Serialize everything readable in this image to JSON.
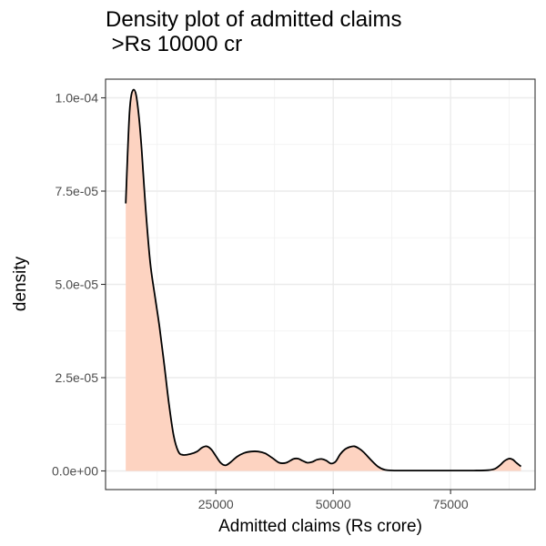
{
  "chart_data": {
    "type": "area",
    "title_line1": "Density plot of admitted claims",
    "title_line2": " >Rs 10000 cr",
    "xlabel": "Admitted claims (Rs crore)",
    "ylabel": "density",
    "xlim": [
      1500,
      93000
    ],
    "ylim": [
      -5e-06,
      0.000105
    ],
    "x_ticks": [
      {
        "value": 25000,
        "label": "25000"
      },
      {
        "value": 50000,
        "label": "50000"
      },
      {
        "value": 75000,
        "label": "75000"
      }
    ],
    "y_ticks": [
      {
        "value": 0,
        "label": "0.0e+00"
      },
      {
        "value": 2.5e-05,
        "label": "2.5e-05"
      },
      {
        "value": 5e-05,
        "label": "5.0e-05"
      },
      {
        "value": 7.5e-05,
        "label": "7.5e-05"
      },
      {
        "value": 0.0001,
        "label": "1.0e-04"
      }
    ],
    "fill_color": "#fdd3c1",
    "line_color": "#000000",
    "points": [
      [
        5800,
        7.17e-05
      ],
      [
        6200,
        8.5e-05
      ],
      [
        6600,
        9.6e-05
      ],
      [
        7000,
        0.0001008
      ],
      [
        7500,
        0.0001022
      ],
      [
        8000,
        0.0001008
      ],
      [
        8600,
        9.5e-05
      ],
      [
        9200,
        8.6e-05
      ],
      [
        10000,
        7.1e-05
      ],
      [
        11000,
        5.6e-05
      ],
      [
        12000,
        4.7e-05
      ],
      [
        13000,
        3.85e-05
      ],
      [
        14000,
        2.85e-05
      ],
      [
        15000,
        1.8e-05
      ],
      [
        16000,
        9.5e-06
      ],
      [
        17000,
        5.2e-06
      ],
      [
        18000,
        4.3e-06
      ],
      [
        19500,
        4.5e-06
      ],
      [
        21000,
        5.2e-06
      ],
      [
        22000,
        6.2e-06
      ],
      [
        23000,
        6.6e-06
      ],
      [
        24000,
        5.8e-06
      ],
      [
        25000,
        4e-06
      ],
      [
        26000,
        2.2e-06
      ],
      [
        27000,
        1.5e-06
      ],
      [
        28000,
        2.2e-06
      ],
      [
        29500,
        3.8e-06
      ],
      [
        31000,
        4.8e-06
      ],
      [
        32500,
        5.2e-06
      ],
      [
        34000,
        5.2e-06
      ],
      [
        35500,
        4.7e-06
      ],
      [
        37000,
        3.5e-06
      ],
      [
        38500,
        2.2e-06
      ],
      [
        40000,
        2.2e-06
      ],
      [
        41500,
        3.2e-06
      ],
      [
        42500,
        3.3e-06
      ],
      [
        43500,
        2.7e-06
      ],
      [
        44500,
        2.2e-06
      ],
      [
        45500,
        2.4e-06
      ],
      [
        46500,
        3e-06
      ],
      [
        47500,
        3.2e-06
      ],
      [
        48500,
        2.8e-06
      ],
      [
        49500,
        2e-06
      ],
      [
        50500,
        2.5e-06
      ],
      [
        51500,
        4.5e-06
      ],
      [
        52500,
        5.8e-06
      ],
      [
        53500,
        6.4e-06
      ],
      [
        54500,
        6.6e-06
      ],
      [
        55500,
        6e-06
      ],
      [
        56500,
        5e-06
      ],
      [
        58000,
        3e-06
      ],
      [
        59500,
        1.2e-06
      ],
      [
        61000,
        3e-07
      ],
      [
        63000,
        1e-07
      ],
      [
        66000,
        1e-07
      ],
      [
        70000,
        1e-07
      ],
      [
        75000,
        1e-07
      ],
      [
        80000,
        1e-07
      ],
      [
        83000,
        2e-07
      ],
      [
        84500,
        6e-07
      ],
      [
        85500,
        1.5e-06
      ],
      [
        86500,
        2.7e-06
      ],
      [
        87500,
        3.3e-06
      ],
      [
        88300,
        3e-06
      ],
      [
        89000,
        2.2e-06
      ],
      [
        90000,
        1.2e-06
      ]
    ]
  }
}
